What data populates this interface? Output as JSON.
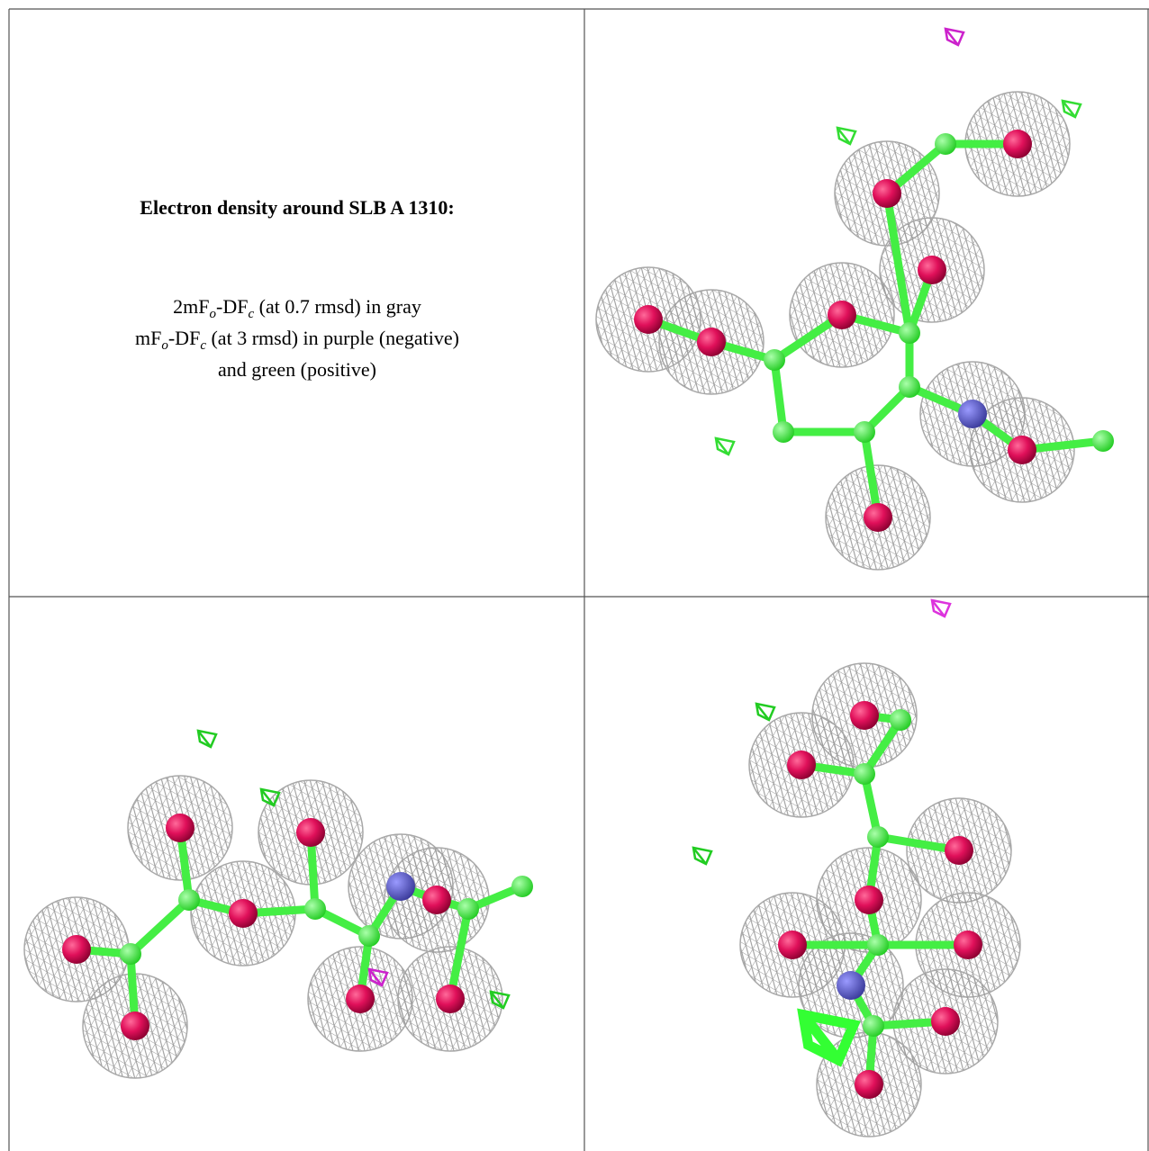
{
  "caption": {
    "title": "Electron density around SLB A 1310:",
    "lines": [
      [
        "2mF",
        "o",
        "-DF",
        "c",
        " (at 0.7 rmsd) in gray"
      ],
      [
        "mF",
        "o",
        "-DF",
        "c",
        " (at 3 rmsd) in purple (negative)"
      ],
      [
        "and green (positive)"
      ]
    ]
  }
}
